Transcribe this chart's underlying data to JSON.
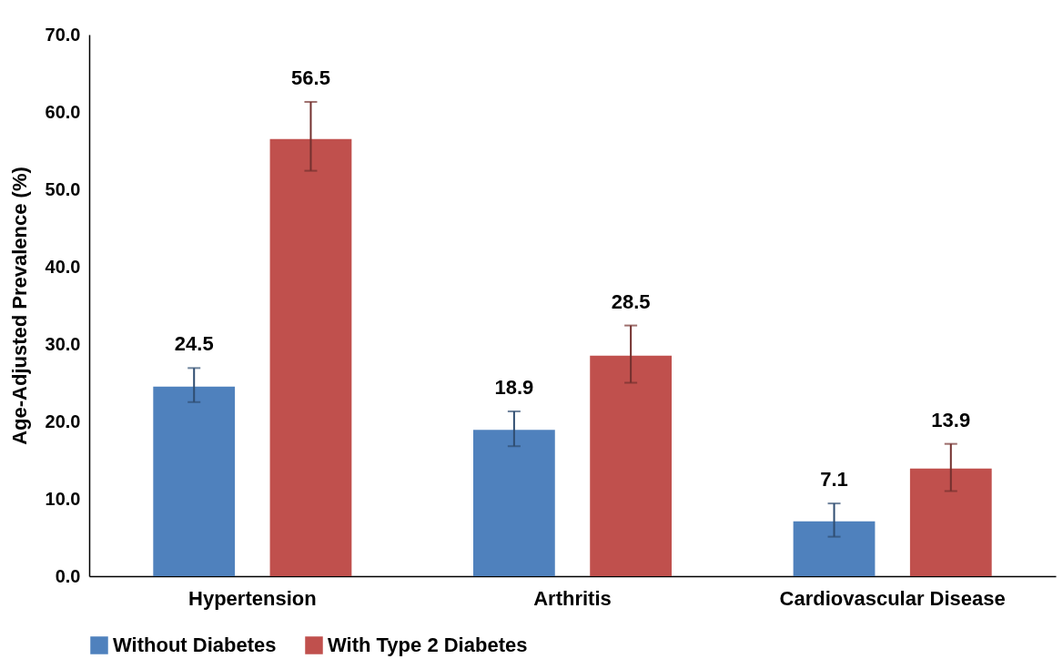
{
  "chart_data": {
    "type": "bar",
    "ylabel": "Age-Adjusted Prevalence (%)",
    "categories": [
      "Hypertension",
      "Arthritis",
      "Cardiovascular Disease"
    ],
    "series": [
      {
        "name": "Without Diabetes",
        "color": "#4f81bd",
        "values": [
          24.5,
          18.9,
          7.1
        ],
        "errors": [
          [
            22.5,
            26.9
          ],
          [
            16.8,
            21.3
          ],
          [
            5.1,
            9.4
          ]
        ]
      },
      {
        "name": "With Type 2 Diabetes",
        "color": "#c0504d",
        "values": [
          56.5,
          28.5,
          13.9
        ],
        "errors": [
          [
            52.4,
            61.3
          ],
          [
            25.0,
            32.4
          ],
          [
            11.0,
            17.1
          ]
        ]
      }
    ],
    "ylim": [
      0,
      70
    ],
    "yticks": [
      {
        "value": 0,
        "label": "0.0"
      },
      {
        "value": 10,
        "label": "10.0"
      },
      {
        "value": 20,
        "label": "20.0"
      },
      {
        "value": 30,
        "label": "30.0"
      },
      {
        "value": 40,
        "label": "40.0"
      },
      {
        "value": 50,
        "label": "50.0"
      },
      {
        "value": 60,
        "label": "60.0"
      },
      {
        "value": 70,
        "label": "70.0"
      }
    ],
    "data_labels": true,
    "grid": false,
    "legend": "bottom"
  }
}
